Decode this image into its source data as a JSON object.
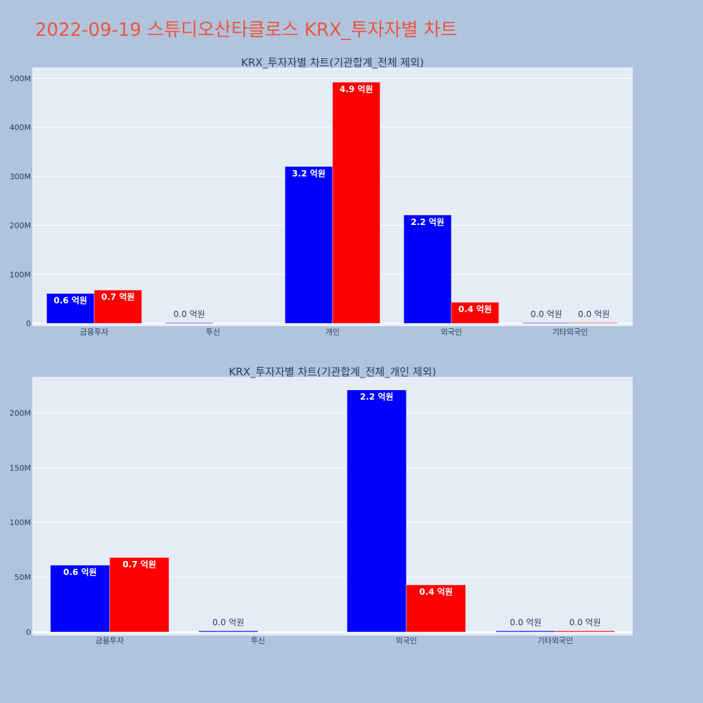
{
  "title": "2022-09-19 스튜디오산타클로스 KRX_투자자별 차트",
  "colors": {
    "page_bg": "#b0c4de",
    "plot_bg": "#e5ecf6",
    "title": "#ef553b",
    "text": "#2a3f5f",
    "series_1": "#0000ff",
    "series_2": "#ff0000"
  },
  "chart_data": [
    {
      "type": "bar",
      "title": "KRX_투자자별 차트(기관합계_전체 제외)",
      "categories": [
        "금융투자",
        "투신",
        "개인",
        "외국인",
        "기타외국인"
      ],
      "series": [
        {
          "values": [
            61000000,
            1000000,
            320000000,
            221000000,
            1000000
          ],
          "labels": [
            "0.6 억원",
            "0.0 억원",
            "3.2 억원",
            "2.2 억원",
            "0.0 억원"
          ]
        },
        {
          "values": [
            68000000,
            0,
            492000000,
            43000000,
            1000000
          ],
          "labels": [
            "0.7 억원",
            "",
            "4.9 억원",
            "0.4 억원",
            "0.0 억원"
          ]
        }
      ],
      "yticks": [
        0,
        100000000,
        200000000,
        300000000,
        400000000,
        500000000
      ],
      "ytick_labels": [
        "0",
        "100M",
        "200M",
        "300M",
        "400M",
        "500M"
      ],
      "ylim": [
        0,
        522000000
      ],
      "grid": true,
      "legend": "none"
    },
    {
      "type": "bar",
      "title": "KRX_투자자별 차트(기관합계_전체_개인 제외)",
      "categories": [
        "금융투자",
        "투신",
        "외국인",
        "기타외국인"
      ],
      "series": [
        {
          "values": [
            61000000,
            1000000,
            221000000,
            1000000
          ],
          "labels": [
            "0.6 억원",
            "0.0 억원",
            "2.2 억원",
            "0.0 억원"
          ]
        },
        {
          "values": [
            68000000,
            0,
            43000000,
            1000000
          ],
          "labels": [
            "0.7 억원",
            "",
            "0.4 억원",
            "0.0 억원"
          ]
        }
      ],
      "yticks": [
        0,
        50000000,
        100000000,
        150000000,
        200000000
      ],
      "ytick_labels": [
        "0",
        "50M",
        "100M",
        "150M",
        "200M"
      ],
      "ylim": [
        0,
        233000000
      ],
      "grid": true,
      "legend": "none"
    }
  ]
}
